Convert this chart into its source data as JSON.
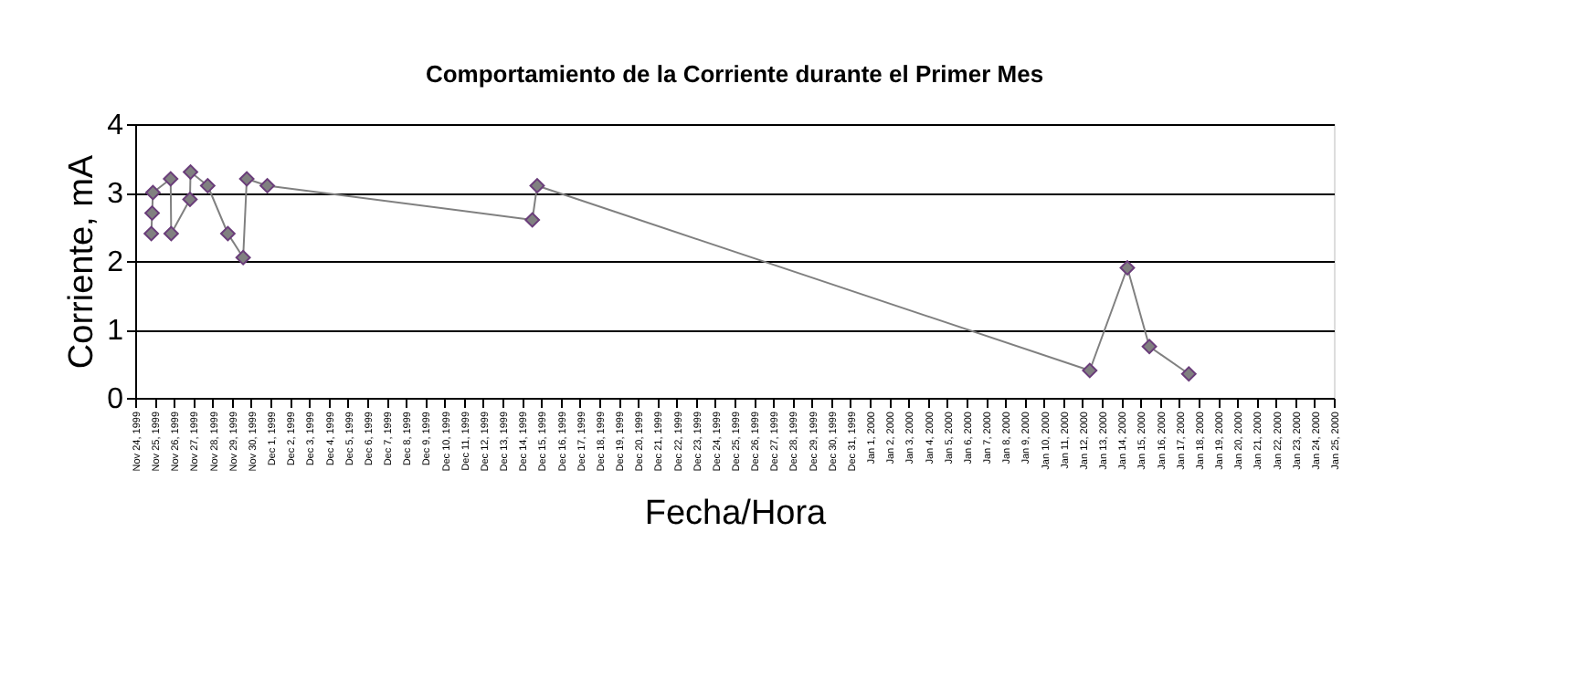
{
  "chart_data": {
    "type": "line",
    "title": "Comportamiento de la Corriente durante el Primer Mes",
    "xlabel": "Fecha/Hora",
    "ylabel": "Corriente, mA",
    "x": [
      "1999-11-24T20:00",
      "1999-11-24T21:00",
      "1999-11-24T22:00",
      "1999-11-25T20:00",
      "1999-11-25T20:40",
      "1999-11-26T20:00",
      "1999-11-26T20:40",
      "1999-11-27T18:00",
      "1999-11-28T19:00",
      "1999-11-29T14:00",
      "1999-11-29T18:30",
      "1999-11-30T20:00",
      "1999-12-14T13:00",
      "1999-12-14T19:00",
      "2000-01-12T09:00",
      "2000-01-14T07:40",
      "2000-01-15T11:00",
      "2000-01-17T12:00"
    ],
    "series": [
      {
        "color": "#808080",
        "values": [
          2.4,
          2.7,
          3.0,
          3.2,
          2.4,
          2.9,
          3.3,
          3.1,
          2.4,
          2.05,
          3.2,
          3.1,
          2.6,
          3.1,
          0.4,
          1.9,
          0.75,
          0.35
        ]
      }
    ],
    "marker": "diamond",
    "line_style": "solid",
    "grid": "y",
    "ylim": [
      0,
      4
    ],
    "yticks": [
      0,
      1,
      2,
      3,
      4
    ],
    "xlim": [
      "1999-11-24",
      "2000-01-25"
    ],
    "xticks": [
      {
        "value": "1999-11-24",
        "label": "Nov 24, 1999"
      },
      {
        "value": "1999-11-25",
        "label": "Nov 25, 1999"
      },
      {
        "value": "1999-11-26",
        "label": "Nov 26, 1999"
      },
      {
        "value": "1999-11-27",
        "label": "Nov 27, 1999"
      },
      {
        "value": "1999-11-28",
        "label": "Nov 28, 1999"
      },
      {
        "value": "1999-11-29",
        "label": "Nov 29, 1999"
      },
      {
        "value": "1999-11-30",
        "label": "Nov 30, 1999"
      },
      {
        "value": "1999-12-01",
        "label": "Dec 1, 1999"
      },
      {
        "value": "1999-12-02",
        "label": "Dec 2, 1999"
      },
      {
        "value": "1999-12-03",
        "label": "Dec 3, 1999"
      },
      {
        "value": "1999-12-04",
        "label": "Dec 4, 1999"
      },
      {
        "value": "1999-12-05",
        "label": "Dec 5, 1999"
      },
      {
        "value": "1999-12-06",
        "label": "Dec 6, 1999"
      },
      {
        "value": "1999-12-07",
        "label": "Dec 7, 1999"
      },
      {
        "value": "1999-12-08",
        "label": "Dec 8, 1999"
      },
      {
        "value": "1999-12-09",
        "label": "Dec 9, 1999"
      },
      {
        "value": "1999-12-10",
        "label": "Dec 10, 1999"
      },
      {
        "value": "1999-12-11",
        "label": "Dec 11, 1999"
      },
      {
        "value": "1999-12-12",
        "label": "Dec 12, 1999"
      },
      {
        "value": "1999-12-13",
        "label": "Dec 13, 1999"
      },
      {
        "value": "1999-12-14",
        "label": "Dec 14, 1999"
      },
      {
        "value": "1999-12-15",
        "label": "Dec 15, 1999"
      },
      {
        "value": "1999-12-16",
        "label": "Dec 16, 1999"
      },
      {
        "value": "1999-12-17",
        "label": "Dec 17, 1999"
      },
      {
        "value": "1999-12-18",
        "label": "Dec 18, 1999"
      },
      {
        "value": "1999-12-19",
        "label": "Dec 19, 1999"
      },
      {
        "value": "1999-12-20",
        "label": "Dec 20, 1999"
      },
      {
        "value": "1999-12-21",
        "label": "Dec 21, 1999"
      },
      {
        "value": "1999-12-22",
        "label": "Dec 22, 1999"
      },
      {
        "value": "1999-12-23",
        "label": "Dec 23, 1999"
      },
      {
        "value": "1999-12-24",
        "label": "Dec 24, 1999"
      },
      {
        "value": "1999-12-25",
        "label": "Dec 25, 1999"
      },
      {
        "value": "1999-12-26",
        "label": "Dec 26, 1999"
      },
      {
        "value": "1999-12-27",
        "label": "Dec 27, 1999"
      },
      {
        "value": "1999-12-28",
        "label": "Dec 28, 1999"
      },
      {
        "value": "1999-12-29",
        "label": "Dec 29, 1999"
      },
      {
        "value": "1999-12-30",
        "label": "Dec 30, 1999"
      },
      {
        "value": "1999-12-31",
        "label": "Dec 31, 1999"
      },
      {
        "value": "2000-01-01",
        "label": "Jan 1, 2000"
      },
      {
        "value": "2000-01-02",
        "label": "Jan 2, 2000"
      },
      {
        "value": "2000-01-03",
        "label": "Jan 3, 2000"
      },
      {
        "value": "2000-01-04",
        "label": "Jan 4, 2000"
      },
      {
        "value": "2000-01-05",
        "label": "Jan 5, 2000"
      },
      {
        "value": "2000-01-06",
        "label": "Jan 6, 2000"
      },
      {
        "value": "2000-01-07",
        "label": "Jan 7, 2000"
      },
      {
        "value": "2000-01-08",
        "label": "Jan 8, 2000"
      },
      {
        "value": "2000-01-09",
        "label": "Jan 9, 2000"
      },
      {
        "value": "2000-01-10",
        "label": "Jan 10, 2000"
      },
      {
        "value": "2000-01-11",
        "label": "Jan 11, 2000"
      },
      {
        "value": "2000-01-12",
        "label": "Jan 12, 2000"
      },
      {
        "value": "2000-01-13",
        "label": "Jan 13, 2000"
      },
      {
        "value": "2000-01-14",
        "label": "Jan 14, 2000"
      },
      {
        "value": "2000-01-15",
        "label": "Jan 15, 2000"
      },
      {
        "value": "2000-01-16",
        "label": "Jan 16, 2000"
      },
      {
        "value": "2000-01-17",
        "label": "Jan 17, 2000"
      },
      {
        "value": "2000-01-18",
        "label": "Jan 18, 2000"
      },
      {
        "value": "2000-01-19",
        "label": "Jan 19, 2000"
      },
      {
        "value": "2000-01-20",
        "label": "Jan 20, 2000"
      },
      {
        "value": "2000-01-21",
        "label": "Jan 21, 2000"
      },
      {
        "value": "2000-01-22",
        "label": "Jan 22, 2000"
      },
      {
        "value": "2000-01-23",
        "label": "Jan 23, 2000"
      },
      {
        "value": "2000-01-24",
        "label": "Jan 24, 2000"
      },
      {
        "value": "2000-01-25",
        "label": "Jan 25, 2000"
      }
    ]
  }
}
